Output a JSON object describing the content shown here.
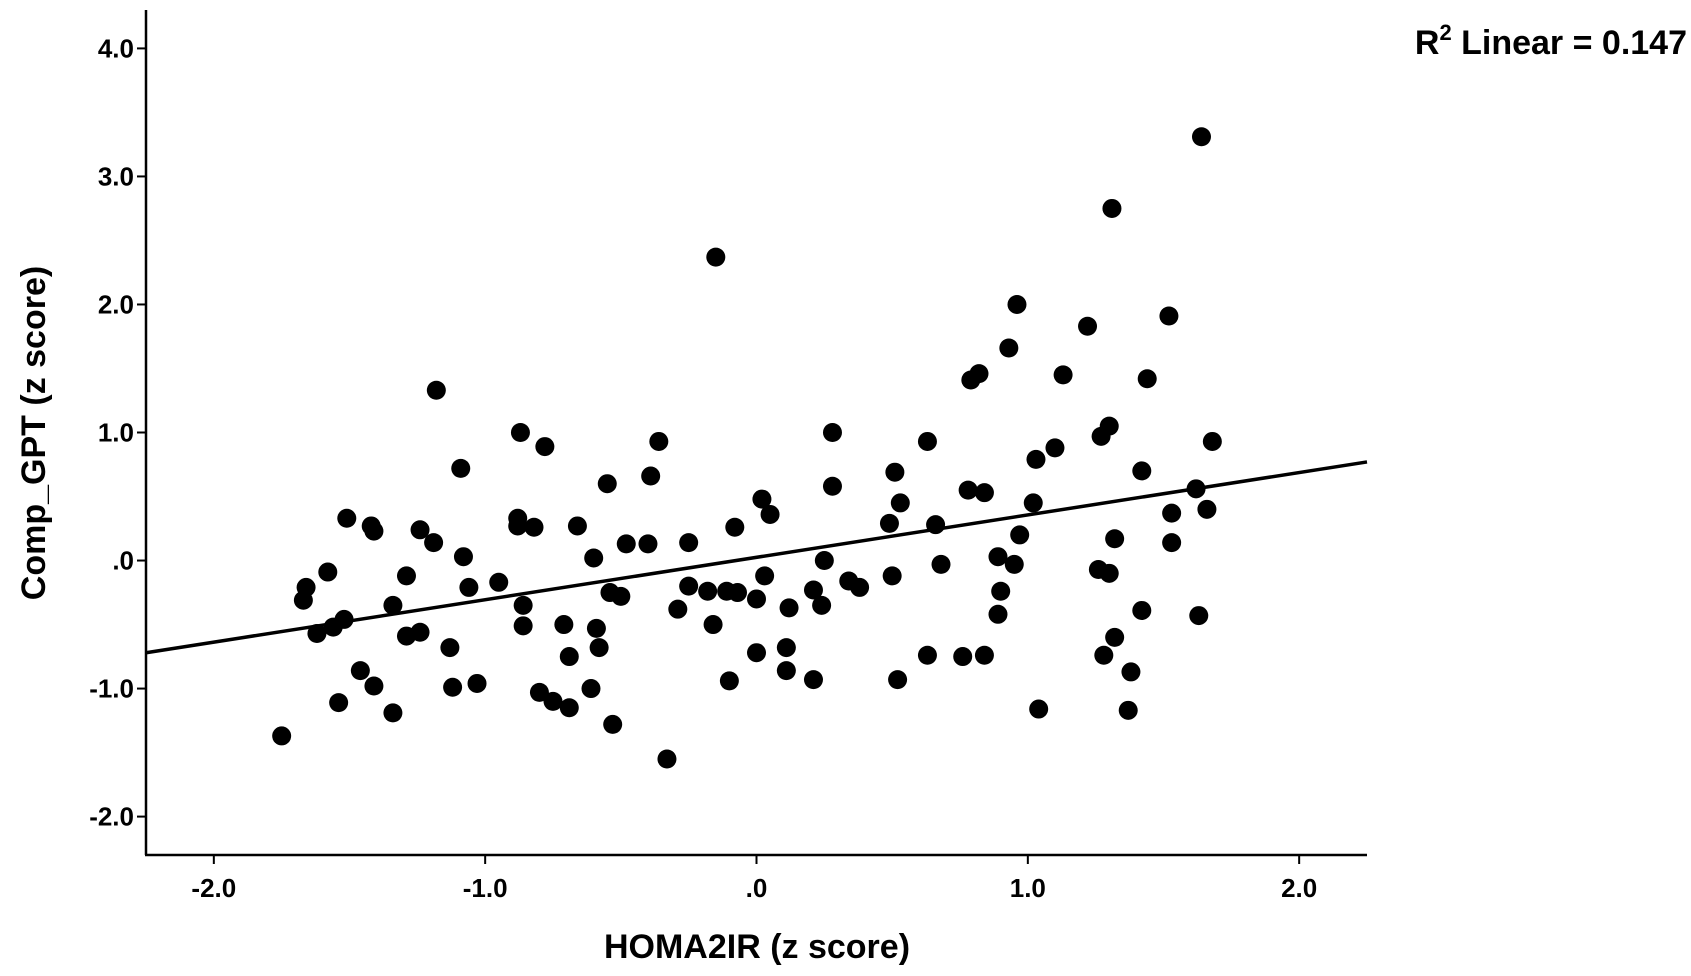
{
  "chart_data": {
    "type": "scatter",
    "title": "",
    "xlabel": "HOMA2IR (z score)",
    "ylabel": "Comp_GPT (z score)",
    "xlim": [
      -2.25,
      2.25
    ],
    "ylim": [
      -2.3,
      4.3
    ],
    "x_ticks": [
      -2.0,
      -1.0,
      0.0,
      1.0,
      2.0
    ],
    "x_tick_labels": [
      "-2.0",
      "-1.0",
      ".0",
      "1.0",
      "2.0"
    ],
    "y_ticks": [
      -2.0,
      -1.0,
      0.0,
      1.0,
      2.0,
      3.0,
      4.0
    ],
    "y_tick_labels": [
      "-2.0",
      "-1.0",
      ".0",
      "1.0",
      "2.0",
      "3.0",
      "4.0"
    ],
    "grid": false,
    "marker_color": "#000000",
    "fit_line": {
      "label_prefix": "R",
      "label_sup": "2",
      "label_rest": " Linear = 0.147",
      "x": [
        -2.25,
        2.25
      ],
      "y": [
        -0.72,
        0.77
      ]
    },
    "points": [
      [
        -1.75,
        -1.37
      ],
      [
        -1.67,
        -0.31
      ],
      [
        -1.66,
        -0.21
      ],
      [
        -1.62,
        -0.57
      ],
      [
        -1.58,
        -0.09
      ],
      [
        -1.56,
        -0.52
      ],
      [
        -1.54,
        -1.11
      ],
      [
        -1.52,
        -0.46
      ],
      [
        -1.51,
        0.33
      ],
      [
        -1.46,
        -0.86
      ],
      [
        -1.42,
        0.27
      ],
      [
        -1.41,
        0.23
      ],
      [
        -1.41,
        -0.98
      ],
      [
        -1.34,
        -0.35
      ],
      [
        -1.34,
        -1.19
      ],
      [
        -1.29,
        -0.12
      ],
      [
        -1.29,
        -0.59
      ],
      [
        -1.24,
        0.24
      ],
      [
        -1.24,
        -0.56
      ],
      [
        -1.19,
        0.14
      ],
      [
        -1.18,
        1.33
      ],
      [
        -1.13,
        -0.68
      ],
      [
        -1.12,
        -0.99
      ],
      [
        -1.09,
        0.72
      ],
      [
        -1.08,
        0.03
      ],
      [
        -1.06,
        -0.21
      ],
      [
        -1.03,
        -0.96
      ],
      [
        -0.95,
        -0.17
      ],
      [
        -0.88,
        0.33
      ],
      [
        -0.88,
        0.27
      ],
      [
        -0.87,
        1.0
      ],
      [
        -0.86,
        -0.35
      ],
      [
        -0.86,
        -0.51
      ],
      [
        -0.82,
        0.26
      ],
      [
        -0.8,
        -1.03
      ],
      [
        -0.78,
        0.89
      ],
      [
        -0.75,
        -1.1
      ],
      [
        -0.71,
        -0.5
      ],
      [
        -0.69,
        -0.75
      ],
      [
        -0.69,
        -1.15
      ],
      [
        -0.66,
        0.27
      ],
      [
        -0.61,
        -1.0
      ],
      [
        -0.6,
        0.02
      ],
      [
        -0.59,
        -0.53
      ],
      [
        -0.58,
        -0.68
      ],
      [
        -0.55,
        0.6
      ],
      [
        -0.54,
        -0.25
      ],
      [
        -0.53,
        -1.28
      ],
      [
        -0.5,
        -0.28
      ],
      [
        -0.48,
        0.13
      ],
      [
        -0.4,
        0.13
      ],
      [
        -0.39,
        0.66
      ],
      [
        -0.36,
        0.93
      ],
      [
        -0.33,
        -1.55
      ],
      [
        -0.29,
        -0.38
      ],
      [
        -0.25,
        0.14
      ],
      [
        -0.25,
        -0.2
      ],
      [
        -0.18,
        -0.24
      ],
      [
        -0.16,
        -0.5
      ],
      [
        -0.15,
        2.37
      ],
      [
        -0.11,
        -0.24
      ],
      [
        -0.1,
        -0.94
      ],
      [
        -0.08,
        0.26
      ],
      [
        -0.07,
        -0.25
      ],
      [
        0.0,
        -0.72
      ],
      [
        0.0,
        -0.3
      ],
      [
        0.02,
        0.48
      ],
      [
        0.03,
        -0.12
      ],
      [
        0.05,
        0.36
      ],
      [
        0.11,
        -0.68
      ],
      [
        0.11,
        -0.86
      ],
      [
        0.12,
        -0.37
      ],
      [
        0.21,
        -0.93
      ],
      [
        0.21,
        -0.23
      ],
      [
        0.24,
        -0.35
      ],
      [
        0.25,
        0.0
      ],
      [
        0.28,
        1.0
      ],
      [
        0.28,
        0.58
      ],
      [
        0.34,
        -0.16
      ],
      [
        0.38,
        -0.21
      ],
      [
        0.49,
        0.29
      ],
      [
        0.5,
        -0.12
      ],
      [
        0.51,
        0.69
      ],
      [
        0.52,
        -0.93
      ],
      [
        0.53,
        0.45
      ],
      [
        0.63,
        0.93
      ],
      [
        0.63,
        -0.74
      ],
      [
        0.66,
        0.28
      ],
      [
        0.68,
        -0.03
      ],
      [
        0.76,
        -0.75
      ],
      [
        0.78,
        0.55
      ],
      [
        0.79,
        1.41
      ],
      [
        0.82,
        1.46
      ],
      [
        0.84,
        0.53
      ],
      [
        0.84,
        -0.74
      ],
      [
        0.89,
        0.03
      ],
      [
        0.89,
        -0.42
      ],
      [
        0.9,
        -0.24
      ],
      [
        0.93,
        1.66
      ],
      [
        0.95,
        -0.03
      ],
      [
        0.96,
        2.0
      ],
      [
        0.97,
        0.2
      ],
      [
        1.02,
        0.45
      ],
      [
        1.03,
        0.79
      ],
      [
        1.04,
        -1.16
      ],
      [
        1.1,
        0.88
      ],
      [
        1.13,
        1.45
      ],
      [
        1.22,
        1.83
      ],
      [
        1.26,
        -0.07
      ],
      [
        1.27,
        0.97
      ],
      [
        1.28,
        -0.74
      ],
      [
        1.3,
        1.05
      ],
      [
        1.3,
        -0.1
      ],
      [
        1.31,
        2.75
      ],
      [
        1.32,
        0.17
      ],
      [
        1.32,
        -0.6
      ],
      [
        1.37,
        -1.17
      ],
      [
        1.38,
        -0.87
      ],
      [
        1.42,
        0.7
      ],
      [
        1.42,
        -0.39
      ],
      [
        1.44,
        1.42
      ],
      [
        1.52,
        1.91
      ],
      [
        1.53,
        0.37
      ],
      [
        1.53,
        0.14
      ],
      [
        1.62,
        0.56
      ],
      [
        1.63,
        -0.43
      ],
      [
        1.64,
        3.31
      ],
      [
        1.66,
        0.4
      ],
      [
        1.68,
        0.93
      ]
    ]
  }
}
